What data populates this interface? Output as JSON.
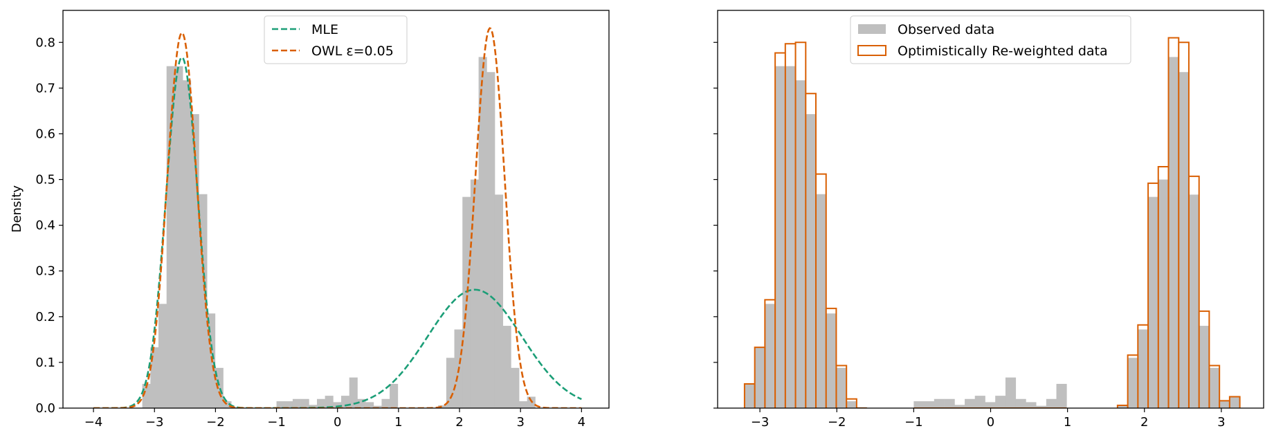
{
  "figure": {
    "background": "#ffffff"
  },
  "chart_data": [
    {
      "type": "histogram+line",
      "title": "",
      "xlabel": "",
      "ylabel": "Density",
      "xlim": [
        -4.5,
        4.45
      ],
      "ylim": [
        0,
        0.87
      ],
      "xticks": [
        -4,
        -3,
        -2,
        -1,
        0,
        1,
        2,
        3,
        4
      ],
      "xtick_labels": [
        "−4",
        "−3",
        "−2",
        "−1",
        "0",
        "1",
        "2",
        "3",
        "4"
      ],
      "yticks": [
        0,
        0.1,
        0.2,
        0.3,
        0.4,
        0.5,
        0.6,
        0.7,
        0.8
      ],
      "ytick_labels": [
        "0.0",
        "0.1",
        "0.2",
        "0.3",
        "0.4",
        "0.5",
        "0.6",
        "0.7",
        "0.8"
      ],
      "grid": false,
      "legend_position": "top-center",
      "legend": [
        {
          "label": "MLE",
          "color": "#1b9e77",
          "style": "dashed"
        },
        {
          "label": "OWL ε=0.05",
          "color": "#d95f02",
          "style": "dashed"
        }
      ],
      "histogram": {
        "color": "#bfbfbf",
        "bin_width": 0.1325,
        "x_left": [
          -3.2,
          -3.067,
          -2.935,
          -2.802,
          -2.67,
          -2.537,
          -2.405,
          -2.272,
          -2.14,
          -2.007,
          -1.875,
          -1.742,
          -1.0,
          -0.867,
          -0.735,
          -0.602,
          -0.47,
          -0.337,
          -0.205,
          -0.072,
          0.06,
          0.193,
          0.325,
          0.458,
          0.59,
          0.723,
          0.855,
          1.65,
          1.783,
          1.915,
          2.048,
          2.18,
          2.313,
          2.445,
          2.578,
          2.71,
          2.843,
          2.975,
          3.108
        ],
        "heights": [
          0.053,
          0.133,
          0.228,
          0.748,
          0.748,
          0.717,
          0.643,
          0.468,
          0.207,
          0.088,
          0.015,
          0.002,
          0.015,
          0.015,
          0.02,
          0.02,
          0.007,
          0.02,
          0.027,
          0.013,
          0.027,
          0.067,
          0.02,
          0.013,
          0.005,
          0.02,
          0.053,
          0.006,
          0.11,
          0.172,
          0.462,
          0.5,
          0.768,
          0.735,
          0.467,
          0.18,
          0.088,
          0.015,
          0.025
        ]
      },
      "series": [
        {
          "name": "MLE",
          "style": "dashed",
          "color": "#1b9e77",
          "components": [
            {
              "weight": 0.5,
              "mean": -2.55,
              "sd": 0.26
            },
            {
              "weight": 0.5,
              "mean": 2.25,
              "sd": 0.77
            }
          ],
          "x_range": [
            -4,
            4
          ]
        },
        {
          "name": "OWL ε=0.05",
          "style": "dashed",
          "color": "#d95f02",
          "components": [
            {
              "weight": 0.5,
              "mean": -2.55,
              "sd": 0.243
            },
            {
              "weight": 0.5,
              "mean": 2.5,
              "sd": 0.24
            }
          ],
          "x_range": [
            -4,
            4
          ]
        }
      ]
    },
    {
      "type": "histogram",
      "title": "",
      "xlabel": "",
      "ylabel": "",
      "xlim": [
        -3.55,
        3.55
      ],
      "ylim": [
        0,
        0.87
      ],
      "xticks": [
        -3,
        -2,
        -1,
        0,
        1,
        2,
        3
      ],
      "xtick_labels": [
        "−3",
        "−2",
        "−1",
        "0",
        "1",
        "2",
        "3"
      ],
      "yticks": [
        0,
        0.1,
        0.2,
        0.3,
        0.4,
        0.5,
        0.6,
        0.7,
        0.8
      ],
      "ytick_labels": [],
      "grid": false,
      "legend_position": "top-center",
      "legend": [
        {
          "label": "Observed data",
          "color": "#bfbfbf",
          "style": "filled"
        },
        {
          "label": "Optimistically Re-weighted data",
          "color": "#d95f02",
          "style": "step"
        }
      ],
      "bin_width": 0.1325,
      "x_left": [
        -3.2,
        -3.067,
        -2.935,
        -2.802,
        -2.67,
        -2.537,
        -2.405,
        -2.272,
        -2.14,
        -2.007,
        -1.875,
        -1.742,
        -1.0,
        -0.867,
        -0.735,
        -0.602,
        -0.47,
        -0.337,
        -0.205,
        -0.072,
        0.06,
        0.193,
        0.325,
        0.458,
        0.59,
        0.723,
        0.855,
        1.65,
        1.783,
        1.915,
        2.048,
        2.18,
        2.313,
        2.445,
        2.578,
        2.71,
        2.843,
        2.975,
        3.108
      ],
      "series": [
        {
          "name": "Observed data",
          "color": "#bfbfbf",
          "values": [
            0.053,
            0.133,
            0.228,
            0.748,
            0.748,
            0.717,
            0.643,
            0.468,
            0.207,
            0.088,
            0.015,
            0.002,
            0.015,
            0.015,
            0.02,
            0.02,
            0.007,
            0.02,
            0.027,
            0.013,
            0.027,
            0.067,
            0.02,
            0.013,
            0.005,
            0.02,
            0.053,
            0.006,
            0.11,
            0.172,
            0.462,
            0.5,
            0.768,
            0.735,
            0.467,
            0.18,
            0.088,
            0.015,
            0.025
          ]
        },
        {
          "name": "Optimistically Re-weighted data",
          "color": "#d95f02",
          "values": [
            0.053,
            0.133,
            0.237,
            0.777,
            0.797,
            0.8,
            0.688,
            0.512,
            0.218,
            0.093,
            0.02,
            0.0,
            0.0,
            0.0,
            0.0,
            0.0,
            0.0,
            0.0,
            0.0,
            0.0,
            0.0,
            0.0,
            0.0,
            0.0,
            0.0,
            0.0,
            0.0,
            0.006,
            0.116,
            0.182,
            0.492,
            0.528,
            0.81,
            0.8,
            0.507,
            0.212,
            0.093,
            0.016,
            0.025
          ]
        }
      ]
    }
  ]
}
